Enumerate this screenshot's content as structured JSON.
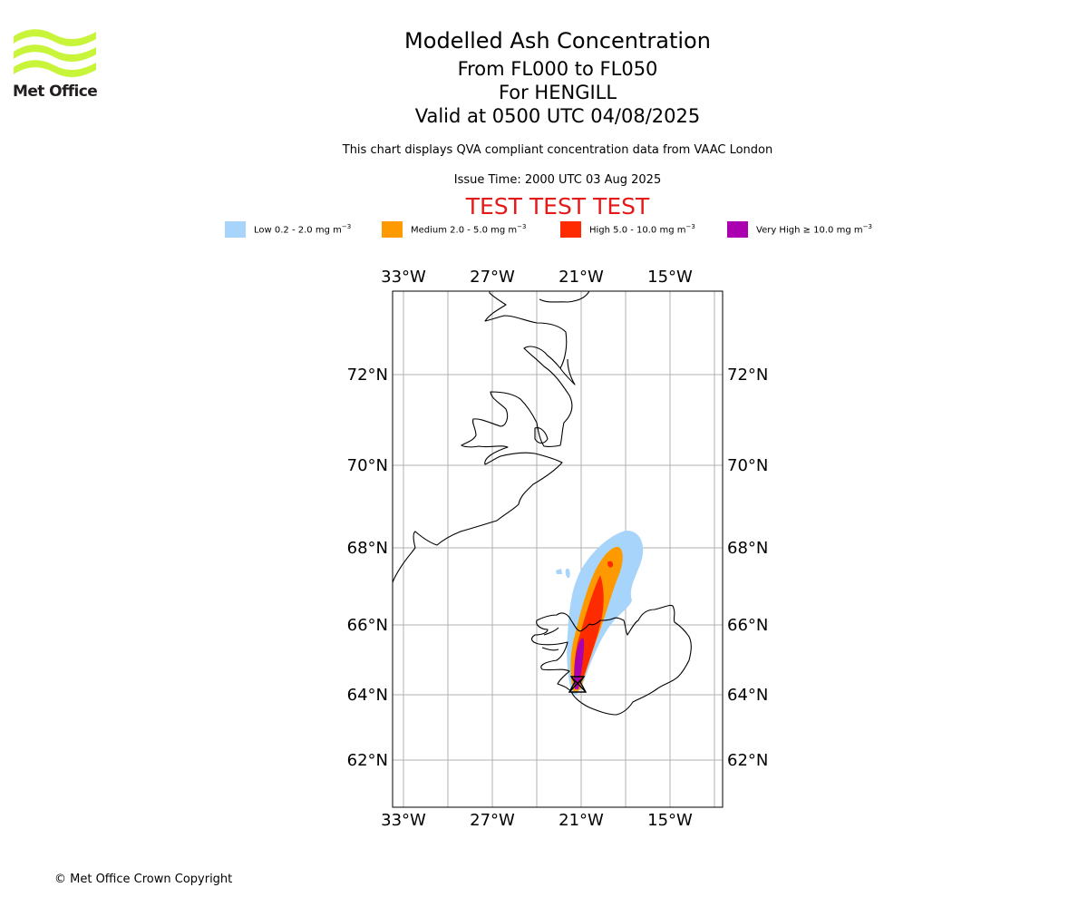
{
  "logo": {
    "text": "Met Office"
  },
  "header": {
    "title": "Modelled Ash Concentration",
    "flight_levels": "From FL000 to FL050",
    "volcano": "For HENGILL",
    "valid_time": "Valid at 0500 UTC 04/08/2025",
    "description": "This chart displays QVA compliant concentration data from VAAC London",
    "issue_time": "Issue Time: 2000 UTC 03 Aug 2025",
    "test_banner": "TEST TEST TEST"
  },
  "legend": [
    {
      "label": "Low 0.2 - 2.0 mg m",
      "unit_exp": "−3",
      "color": "#a6d4fa"
    },
    {
      "label": "Medium 2.0 - 5.0 mg m",
      "unit_exp": "−3",
      "color": "#ff9900"
    },
    {
      "label": "High 5.0 - 10.0 mg m",
      "unit_exp": "−3",
      "color": "#ff2b00"
    },
    {
      "label": "Very High ≥ 10.0 mg m",
      "unit_exp": "−3",
      "color": "#aa00b0"
    }
  ],
  "map": {
    "lon_labels": [
      "33°W",
      "27°W",
      "21°W",
      "15°W"
    ],
    "lat_labels": [
      "72°N",
      "70°N",
      "68°N",
      "66°N",
      "64°N",
      "62°N"
    ],
    "lons": [
      -33,
      -27,
      -21,
      -15
    ],
    "lats": [
      72,
      70,
      68,
      66,
      64,
      62
    ],
    "volcano_marker": {
      "lat": 64.05,
      "lon": -21.3,
      "icon": "volcano-triangle-icon"
    }
  },
  "footer": {
    "copyright": "© Met Office Crown Copyright"
  }
}
